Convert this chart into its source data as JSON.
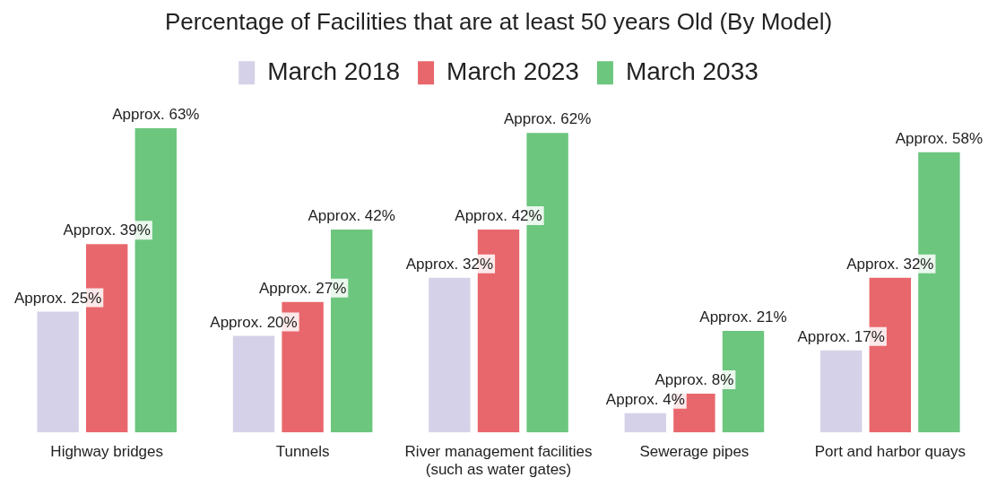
{
  "chart_data": {
    "type": "bar",
    "title": "Percentage of Facilities that are at least 50 years Old (By Model)",
    "categories": [
      "Highway bridges",
      "Tunnels",
      "River management facilities\n(such as water gates)",
      "Sewerage pipes",
      "Port and harbor quays"
    ],
    "series": [
      {
        "name": "March 2018",
        "color": "#d5d1e8",
        "values": [
          25,
          20,
          32,
          4,
          17
        ],
        "value_labels": [
          "Approx. 25%",
          "Approx. 20%",
          "Approx. 32%",
          "Approx. 4%",
          "Approx. 17%"
        ]
      },
      {
        "name": "March 2023",
        "color": "#e8676c",
        "values": [
          39,
          27,
          42,
          8,
          32
        ],
        "value_labels": [
          "Approx. 39%",
          "Approx. 27%",
          "Approx. 42%",
          "Approx. 8%",
          "Approx. 32%"
        ]
      },
      {
        "name": "March 2033",
        "color": "#6cc67e",
        "values": [
          63,
          42,
          62,
          21,
          58
        ],
        "value_labels": [
          "Approx. 63%",
          "Approx. 42%",
          "Approx. 62%",
          "Approx. 21%",
          "Approx. 58%"
        ]
      }
    ],
    "tick_labels": "x",
    "grid": false,
    "legend": "top"
  }
}
